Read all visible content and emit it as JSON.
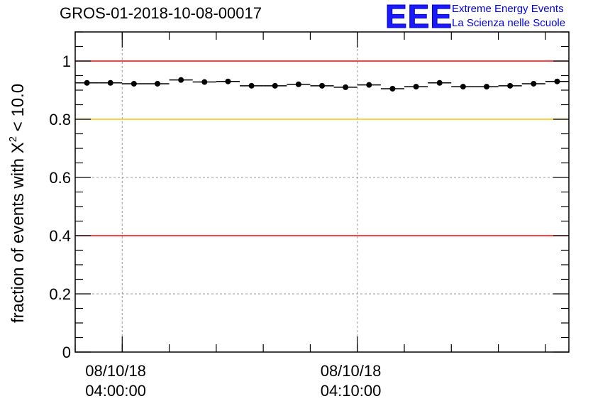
{
  "header": {
    "title": "GROS-01-2018-10-08-00017"
  },
  "logo": {
    "mark": "EEE",
    "line1": "Extreme Energy Events",
    "line2": "La Scienza nelle Scuole",
    "color": "#1a1aff"
  },
  "chart_data": {
    "type": "scatter",
    "ylabel": "fraction of events with χ² < 10.0",
    "ylabel_main": "fraction of events with ",
    "ylabel_chi": "Χ",
    "ylabel_sup": "2",
    "ylabel_tail": " < 10.0",
    "xlabel": "",
    "ylim": [
      0,
      1.1
    ],
    "yticks": [
      0,
      0.2,
      0.4,
      0.6,
      0.8,
      1
    ],
    "ytick_labels": [
      "0",
      "0.2",
      "0.4",
      "0.6",
      "0.8",
      "1"
    ],
    "xlim_minutes": [
      -2,
      19
    ],
    "xticks": [
      {
        "minute": 0,
        "date": "08/10/18",
        "time": "04:00:00"
      },
      {
        "minute": 10,
        "date": "08/10/18",
        "time": "04:10:00"
      }
    ],
    "reference_lines": [
      {
        "y": 1.0,
        "color": "#ff0000"
      },
      {
        "y": 0.8,
        "color": "#ffc000"
      },
      {
        "y": 0.4,
        "color": "#ff0000"
      }
    ],
    "grid": true,
    "series": [
      {
        "x_minutes": [
          -1.5,
          -0.5,
          0.5,
          1.5,
          2.5,
          3.5,
          4.5,
          5.5,
          6.5,
          7.5,
          8.5,
          9.5,
          10.5,
          11.5,
          12.5,
          13.5,
          14.5,
          15.5,
          16.5,
          17.5,
          18.5
        ],
        "y": [
          0.925,
          0.925,
          0.922,
          0.922,
          0.935,
          0.928,
          0.93,
          0.915,
          0.915,
          0.92,
          0.915,
          0.91,
          0.918,
          0.905,
          0.912,
          0.925,
          0.912,
          0.912,
          0.915,
          0.922,
          0.93
        ],
        "color": "#000000"
      }
    ]
  }
}
